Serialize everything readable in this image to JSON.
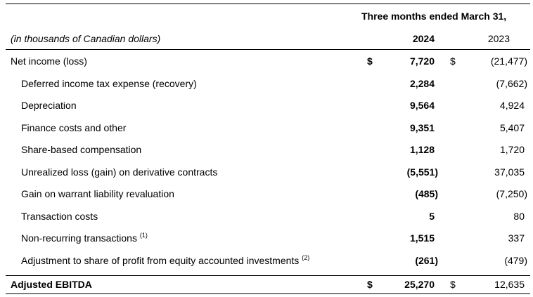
{
  "header": {
    "period": "Three months ended March 31,",
    "units": "(in thousands of Canadian dollars)",
    "year_current": "2024",
    "year_prior": "2023"
  },
  "currency_symbol": "$",
  "rows": [
    {
      "label": "Net income (loss)",
      "note": "",
      "current": "7,720",
      "prior": "(21,477)"
    },
    {
      "label": "Deferred income tax expense (recovery)",
      "note": "",
      "current": "2,284",
      "prior": "(7,662)"
    },
    {
      "label": "Depreciation",
      "note": "",
      "current": "9,564",
      "prior": "4,924"
    },
    {
      "label": "Finance costs and other",
      "note": "",
      "current": "9,351",
      "prior": "5,407"
    },
    {
      "label": "Share-based compensation",
      "note": "",
      "current": "1,128",
      "prior": "1,720"
    },
    {
      "label": "Unrealized loss (gain) on derivative contracts",
      "note": "",
      "current": "(5,551)",
      "prior": "37,035"
    },
    {
      "label": "Gain on warrant liability revaluation",
      "note": "",
      "current": "(485)",
      "prior": "(7,250)"
    },
    {
      "label": "Transaction costs",
      "note": "",
      "current": "5",
      "prior": "80"
    },
    {
      "label": "Non-recurring transactions",
      "note": "(1)",
      "current": "1,515",
      "prior": "337"
    },
    {
      "label": "Adjustment to share of profit from equity accounted investments",
      "note": "(2)",
      "current": "(261)",
      "prior": "(479)"
    }
  ],
  "total": {
    "label": "Adjusted EBITDA",
    "current": "25,270",
    "prior": "12,635"
  }
}
